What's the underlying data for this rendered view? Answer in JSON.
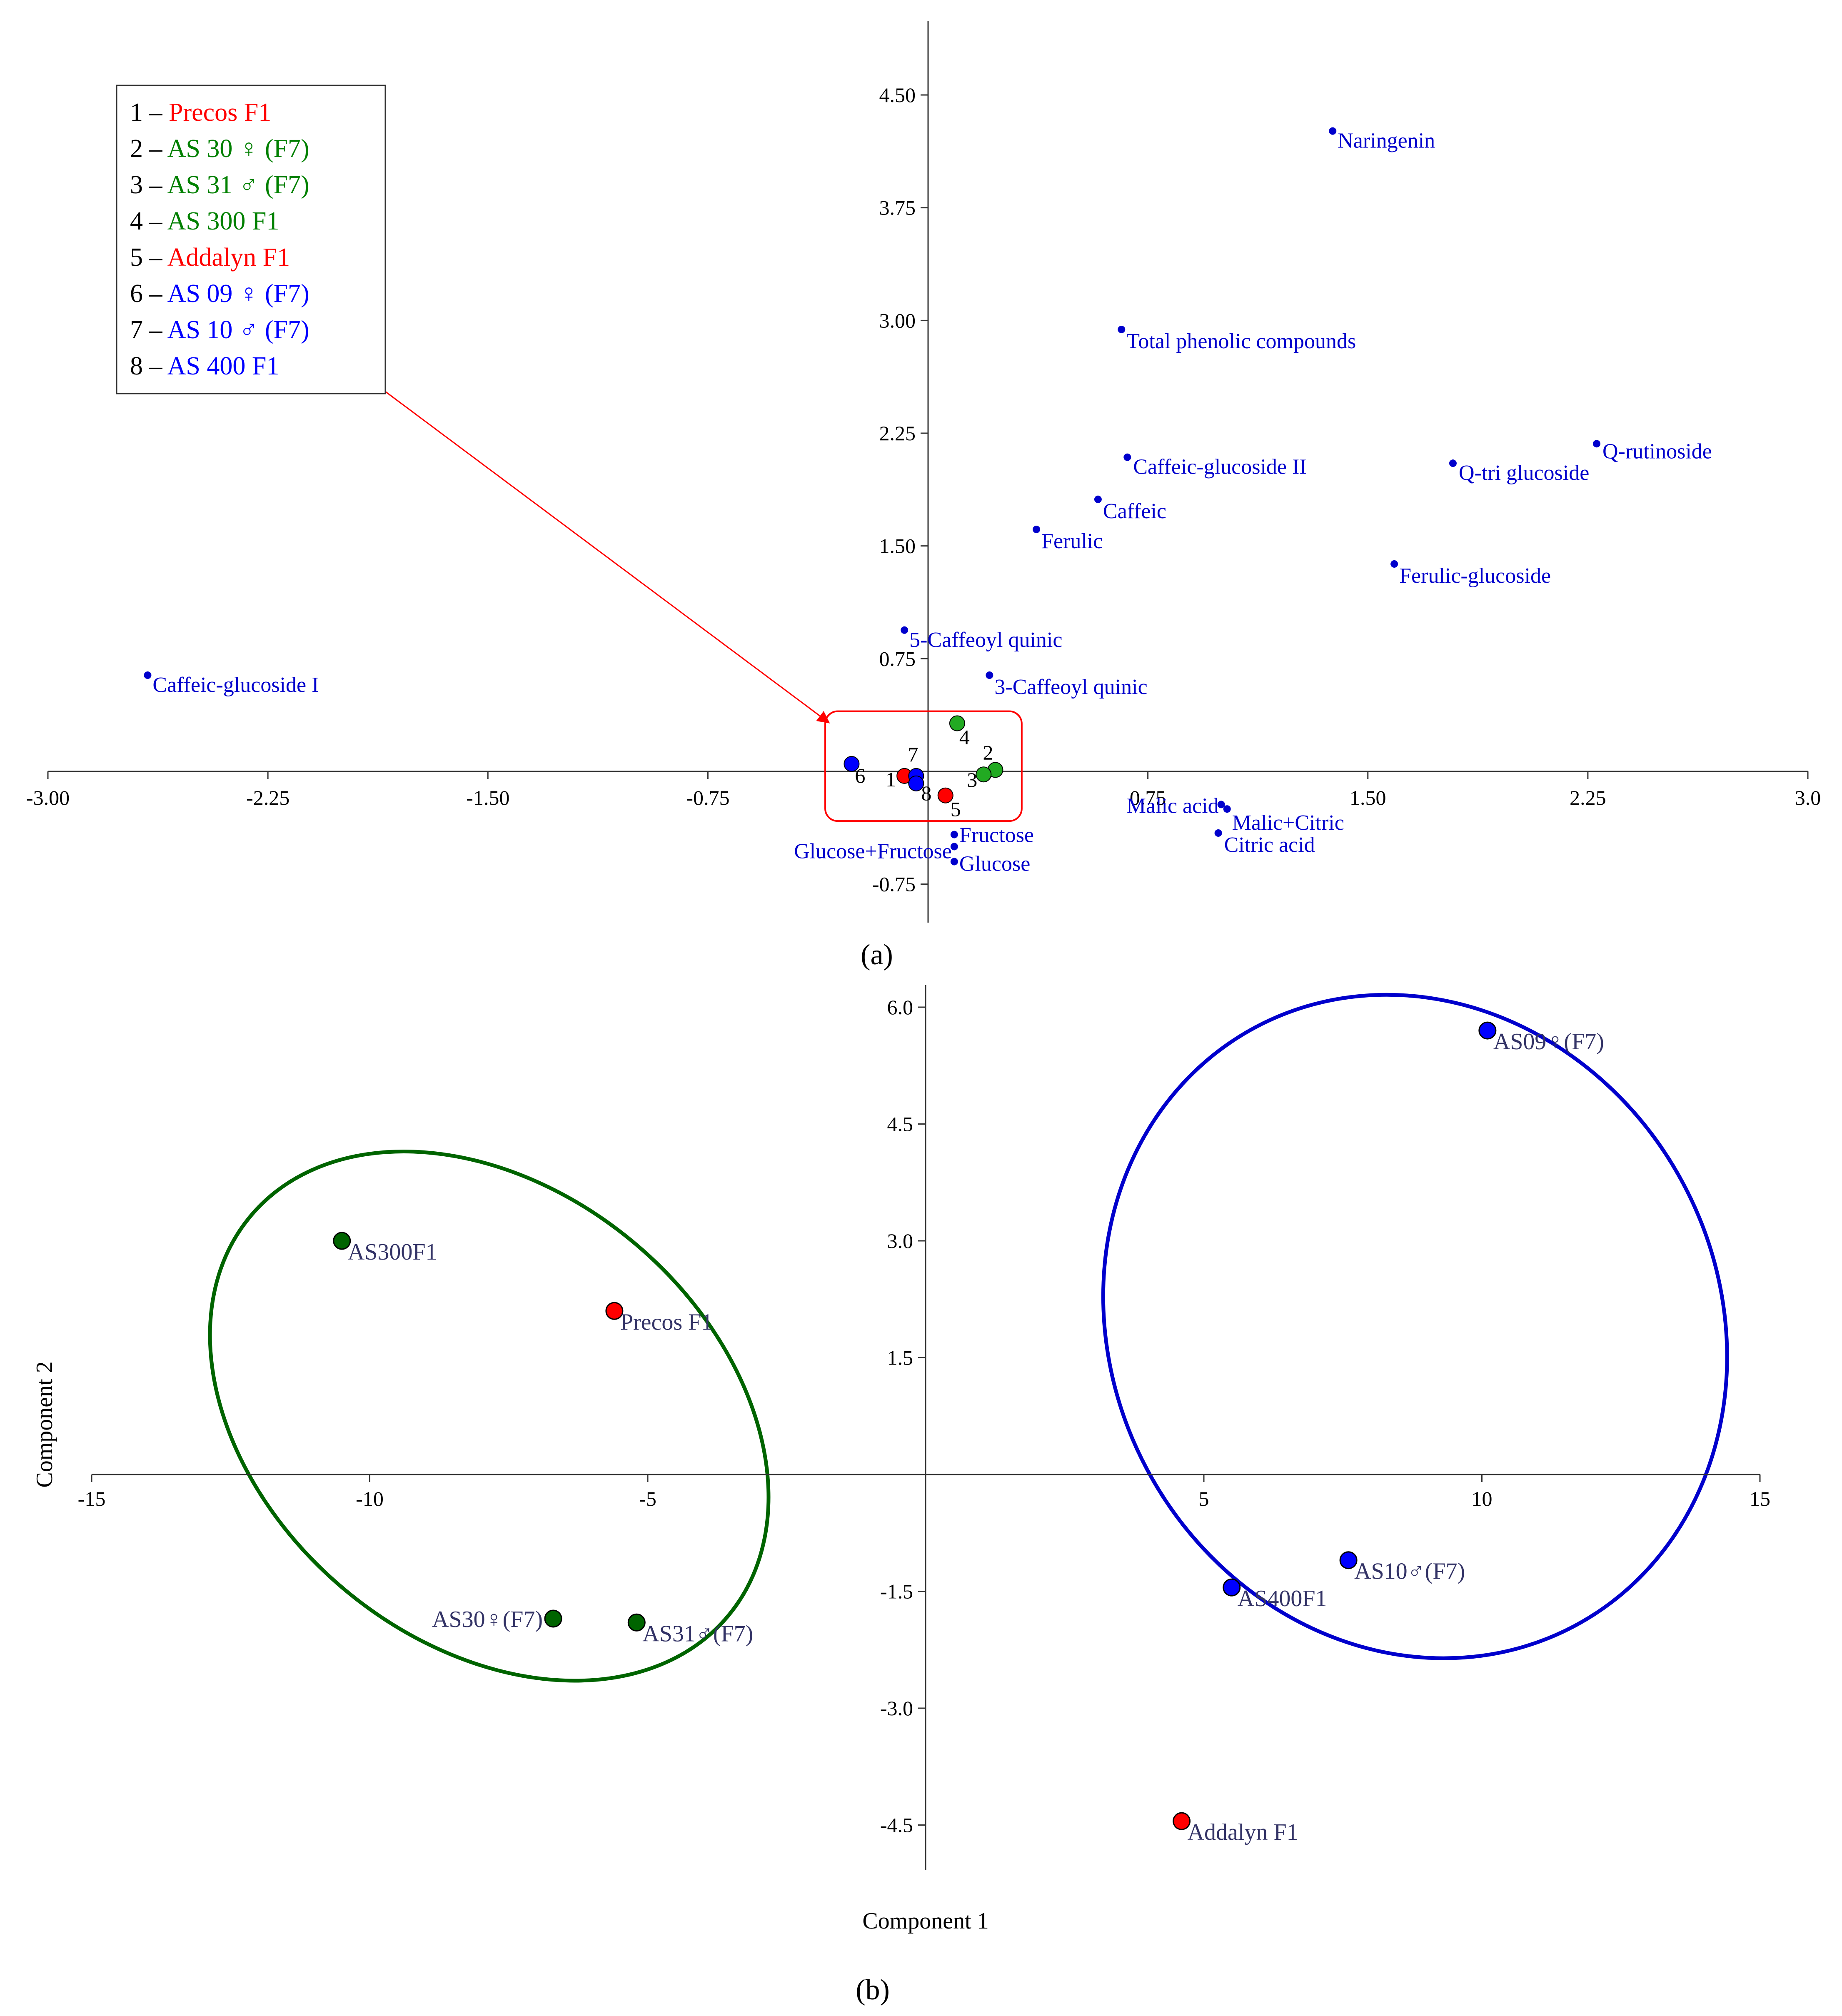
{
  "panel_labels": {
    "a": "(a)",
    "b": "(b)"
  },
  "legend": {
    "entries": [
      {
        "num": "1",
        "sep": " – ",
        "text": "Precos F1",
        "color": "#ff0000"
      },
      {
        "num": "2",
        "sep": " – ",
        "text": "AS 30 ♀ (F7)",
        "color": "#008000"
      },
      {
        "num": "3",
        "sep": " – ",
        "text": "AS 31 ♂ (F7)",
        "color": "#008000"
      },
      {
        "num": "4",
        "sep": " – ",
        "text": "AS 300 F1",
        "color": "#008000"
      },
      {
        "num": "5",
        "sep": " – ",
        "text": "Addalyn F1",
        "color": "#ff0000"
      },
      {
        "num": "6",
        "sep": " – ",
        "text": "AS 09 ♀ (F7)",
        "color": "#0000ff"
      },
      {
        "num": "7",
        "sep": " – ",
        "text": "AS 10 ♂ (F7)",
        "color": "#0000ff"
      },
      {
        "num": "8",
        "sep": " – ",
        "text": "AS 400 F1",
        "color": "#0000ff"
      }
    ]
  },
  "chart_data": [
    {
      "panel": "a",
      "type": "scatter",
      "title": "",
      "xlabel": "",
      "ylabel": "",
      "xlim": [
        -3.0,
        3.0
      ],
      "ylim": [
        -0.9,
        5.0
      ],
      "x_ticks": [
        {
          "value": -3.0,
          "label": "-3.00"
        },
        {
          "value": -2.25,
          "label": "-2.25"
        },
        {
          "value": -1.5,
          "label": "-1.50"
        },
        {
          "value": -0.75,
          "label": "-0.75"
        },
        {
          "value": 0.75,
          "label": "0.75"
        },
        {
          "value": 1.5,
          "label": "1.50"
        },
        {
          "value": 2.25,
          "label": "2.25"
        },
        {
          "value": 3.0,
          "label": "3.0"
        }
      ],
      "y_ticks": [
        {
          "value": 4.5,
          "label": "4.50"
        },
        {
          "value": 3.75,
          "label": "3.75"
        },
        {
          "value": 3.0,
          "label": "3.00"
        },
        {
          "value": 2.25,
          "label": "2.25"
        },
        {
          "value": 1.5,
          "label": "1.50"
        },
        {
          "value": 0.75,
          "label": "0.75"
        },
        {
          "value": -0.75,
          "label": "-0.75"
        }
      ],
      "grid": false,
      "variables": [
        {
          "name": "Naringenin",
          "x": 1.38,
          "y": 4.26
        },
        {
          "name": "Total phenolic compounds",
          "x": 0.66,
          "y": 2.94
        },
        {
          "name": "Q-rutinoside",
          "x": 2.28,
          "y": 2.18
        },
        {
          "name": "Q-tri glucoside",
          "x": 1.79,
          "y": 2.05
        },
        {
          "name": "Caffeic-glucoside II",
          "x": 0.68,
          "y": 2.09
        },
        {
          "name": "Caffeic",
          "x": 0.58,
          "y": 1.81
        },
        {
          "name": "Ferulic",
          "x": 0.37,
          "y": 1.61
        },
        {
          "name": "Ferulic-glucoside",
          "x": 1.59,
          "y": 1.38
        },
        {
          "name": "5-Caffeoyl quinic",
          "x": -0.08,
          "y": 0.94
        },
        {
          "name": "3-Caffeoyl quinic",
          "x": 0.21,
          "y": 0.64
        },
        {
          "name": "Caffeic-glucoside I",
          "x": -2.66,
          "y": 0.64
        },
        {
          "name": "Malic acid",
          "x": 1.0,
          "y": -0.22
        },
        {
          "name": "Malic+Citric",
          "x": 1.02,
          "y": -0.25
        },
        {
          "name": "Citric acid",
          "x": 0.99,
          "y": -0.41
        },
        {
          "name": "Fructose",
          "x": 0.09,
          "y": -0.42
        },
        {
          "name": "Glucose+Fructose",
          "x": 0.09,
          "y": -0.5
        },
        {
          "name": "Glucose",
          "x": 0.09,
          "y": -0.6
        }
      ],
      "samples": [
        {
          "id": "1",
          "x": -0.08,
          "y": -0.03,
          "color": "#ff0000"
        },
        {
          "id": "2",
          "x": 0.23,
          "y": 0.01,
          "color": "#22aa22"
        },
        {
          "id": "3",
          "x": 0.19,
          "y": -0.02,
          "color": "#22aa22"
        },
        {
          "id": "4",
          "x": 0.1,
          "y": 0.32,
          "color": "#22aa22"
        },
        {
          "id": "5",
          "x": 0.06,
          "y": -0.16,
          "color": "#ff0000"
        },
        {
          "id": "6",
          "x": -0.26,
          "y": 0.05,
          "color": "#0000ff"
        },
        {
          "id": "7",
          "x": -0.04,
          "y": -0.03,
          "color": "#0000ff"
        },
        {
          "id": "8",
          "x": -0.04,
          "y": -0.08,
          "color": "#0000ff"
        }
      ],
      "highlight_box": {
        "x_range": [
          -0.35,
          0.32
        ],
        "y_range": [
          -0.33,
          0.4
        ],
        "color": "#ff0000"
      }
    },
    {
      "panel": "b",
      "type": "scatter",
      "title": "",
      "xlabel": "Component 1",
      "ylabel": "Component 2",
      "xlim": [
        -15,
        15
      ],
      "ylim": [
        -5.0,
        6.0
      ],
      "x_ticks": [
        {
          "value": -15,
          "label": "-15"
        },
        {
          "value": -10,
          "label": "-10"
        },
        {
          "value": -5,
          "label": "-5"
        },
        {
          "value": 5,
          "label": "5"
        },
        {
          "value": 10,
          "label": "10"
        },
        {
          "value": 15,
          "label": "15"
        }
      ],
      "y_ticks": [
        {
          "value": 6.0,
          "label": "6.0"
        },
        {
          "value": 4.5,
          "label": "4.5"
        },
        {
          "value": 3.0,
          "label": "3.0"
        },
        {
          "value": 1.5,
          "label": "1.5"
        },
        {
          "value": -1.5,
          "label": "-1.5"
        },
        {
          "value": -3.0,
          "label": "-3.0"
        },
        {
          "value": -4.5,
          "label": "-4.5"
        }
      ],
      "grid": false,
      "samples": [
        {
          "name": "AS09♀(F7)",
          "x": 10.1,
          "y": 5.7,
          "color": "#0000ff",
          "label_side": "right"
        },
        {
          "name": "AS300F1",
          "x": -10.5,
          "y": 3.0,
          "color": "#006400",
          "label_side": "right"
        },
        {
          "name": "Precos F1",
          "x": -5.6,
          "y": 2.1,
          "color": "#ff0000",
          "label_side": "right"
        },
        {
          "name": "AS10♂(F7)",
          "x": 7.6,
          "y": -1.1,
          "color": "#0000ff",
          "label_side": "right"
        },
        {
          "name": "AS400F1",
          "x": 5.5,
          "y": -1.45,
          "color": "#0000ff",
          "label_side": "right"
        },
        {
          "name": "AS30♀(F7)",
          "x": -6.7,
          "y": -1.85,
          "color": "#006400",
          "label_side": "left"
        },
        {
          "name": "AS31♂(F7)",
          "x": -5.2,
          "y": -1.9,
          "color": "#006400",
          "label_side": "right"
        },
        {
          "name": "Addalyn F1",
          "x": 4.6,
          "y": -4.45,
          "color": "#ff0000",
          "label_side": "right"
        }
      ],
      "groups": [
        {
          "color": "#006400",
          "center_x": -7.85,
          "center_y": 0.75,
          "rx": 5.6,
          "ry": 2.9,
          "rotation_deg": 40
        },
        {
          "color": "#0000cc",
          "center_x": 8.8,
          "center_y": 1.9,
          "rx": 6.1,
          "ry": 3.9,
          "rotation_deg": 62
        }
      ]
    }
  ]
}
